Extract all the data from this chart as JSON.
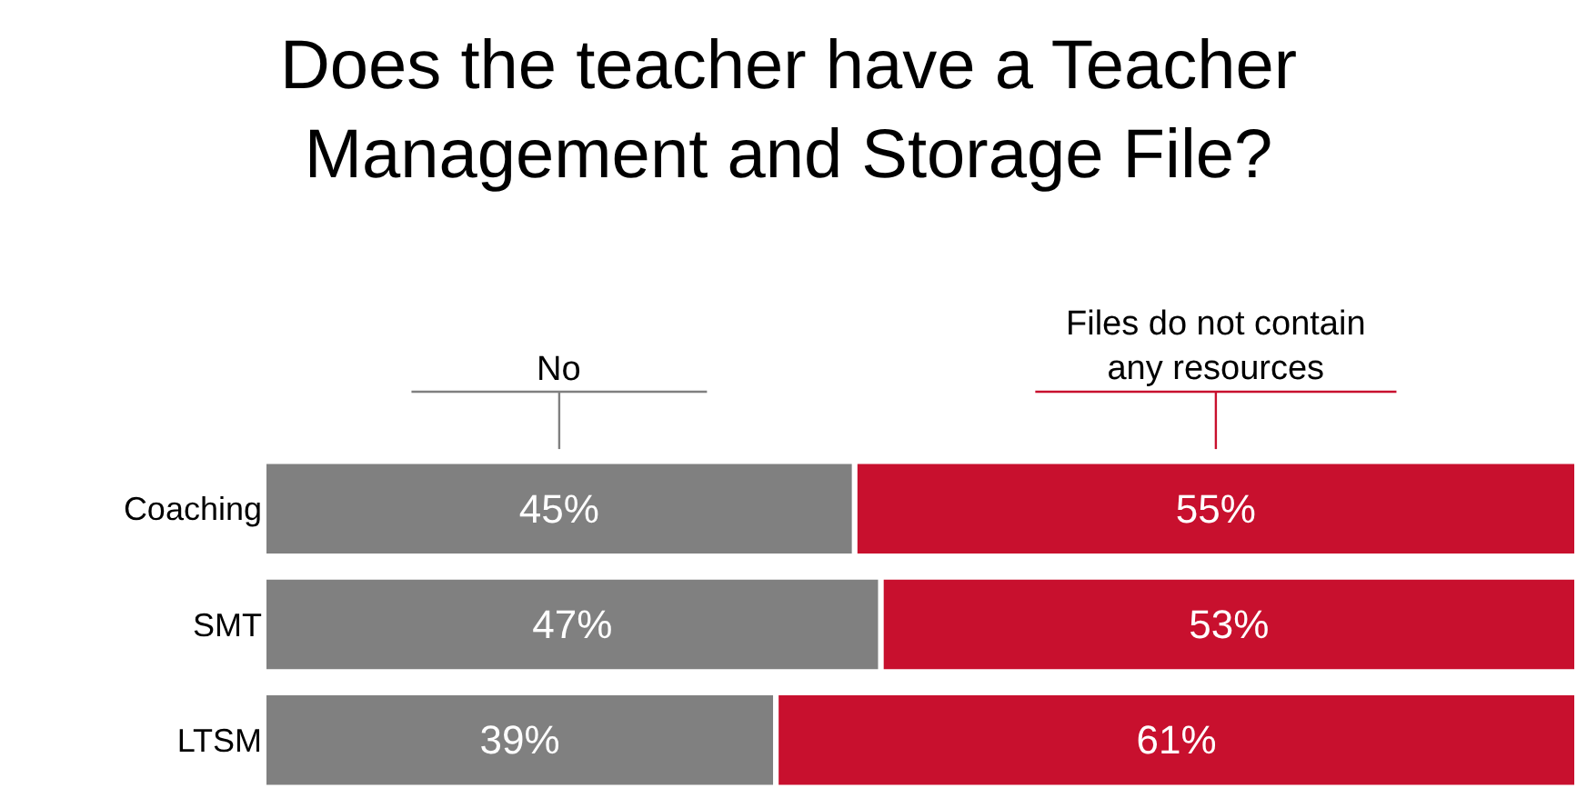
{
  "chart_data": {
    "type": "bar",
    "orientation": "horizontal",
    "stacked": true,
    "title": "Does the teacher have a Teacher\nManagement and Storage File?",
    "categories": [
      "Coaching",
      "SMT",
      "LTSM"
    ],
    "series": [
      {
        "name": "No",
        "color": "#808080",
        "values": [
          45,
          47,
          39
        ],
        "value_labels": [
          "45%",
          "47%",
          "39%"
        ]
      },
      {
        "name": "Files do not contain\nany resources",
        "color": "#c8102e",
        "values": [
          55,
          53,
          61
        ],
        "value_labels": [
          "55%",
          "53%",
          "61%"
        ]
      }
    ],
    "legend": false
  }
}
